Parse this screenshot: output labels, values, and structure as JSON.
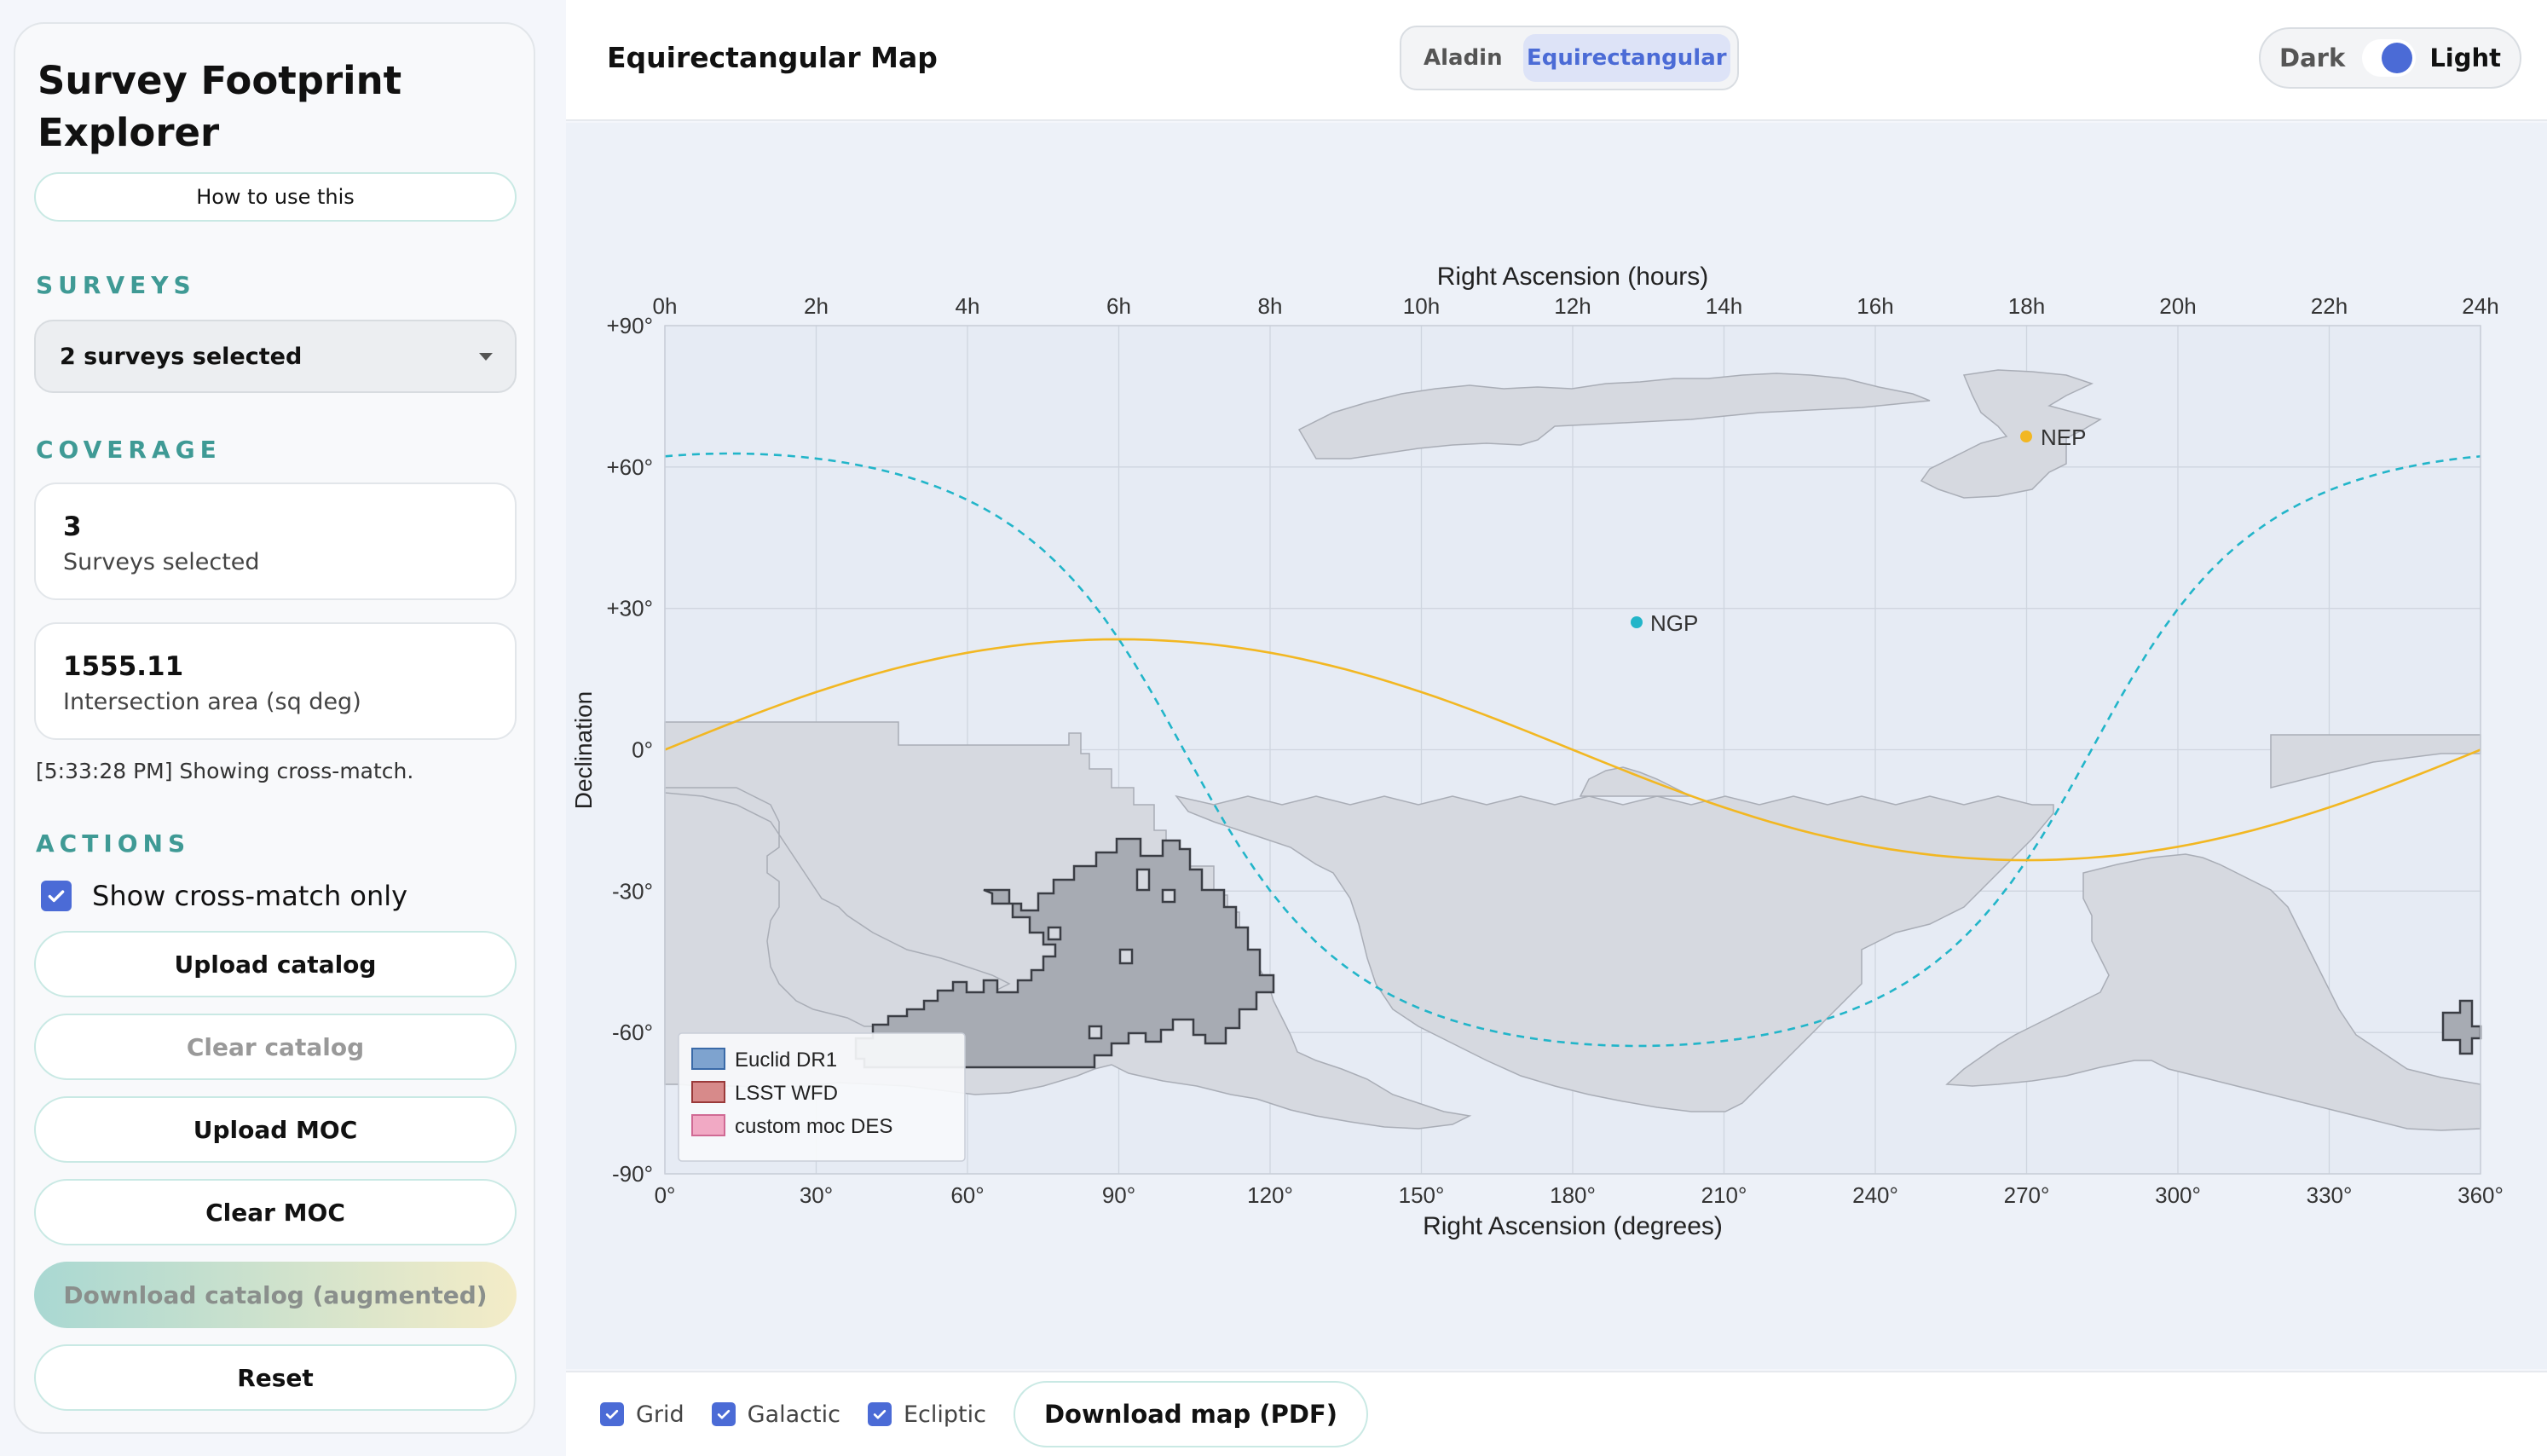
{
  "sidebar": {
    "title_line1": "Survey Footprint",
    "title_line2": "Explorer",
    "help_label": "How to use this",
    "surveys_section": "SURVEYS",
    "surveys_select": "2 surveys selected",
    "coverage_section": "COVERAGE",
    "stat1_value": "3",
    "stat1_label": "Surveys selected",
    "stat2_value": "1555.11",
    "stat2_label": "Intersection area (sq deg)",
    "status": "[5:33:28 PM] Showing cross-match.",
    "actions_section": "ACTIONS",
    "crossmatch_label": "Show cross-match only",
    "btn_upload_catalog": "Upload catalog",
    "btn_clear_catalog": "Clear catalog",
    "btn_upload_moc": "Upload MOC",
    "btn_clear_moc": "Clear MOC",
    "btn_download_catalog": "Download catalog (augmented)",
    "btn_reset": "Reset"
  },
  "header": {
    "title": "Equirectangular Map",
    "view_aladin": "Aladin",
    "view_equirect": "Equirectangular",
    "theme_dark": "Dark",
    "theme_light": "Light"
  },
  "map": {
    "top_axis_title": "Right Ascension (hours)",
    "bottom_axis_title": "Right Ascension (degrees)",
    "y_axis_title": "Declination",
    "hour_ticks": [
      "0h",
      "2h",
      "4h",
      "6h",
      "8h",
      "10h",
      "12h",
      "14h",
      "16h",
      "18h",
      "20h",
      "22h",
      "24h"
    ],
    "deg_ticks": [
      "0°",
      "30°",
      "60°",
      "90°",
      "120°",
      "150°",
      "180°",
      "210°",
      "240°",
      "270°",
      "300°",
      "330°",
      "360°"
    ],
    "dec_ticks": [
      "+90°",
      "+60°",
      "+30°",
      "0°",
      "-30°",
      "-60°",
      "-90°"
    ],
    "ngp_label": "NGP",
    "nep_label": "NEP",
    "legend": [
      {
        "label": "Euclid DR1",
        "fill": "#7ea3cf",
        "stroke": "#3a6aa8"
      },
      {
        "label": "LSST WFD",
        "fill": "#d78a8a",
        "stroke": "#9a3a3a"
      },
      {
        "label": "custom moc DES",
        "fill": "#f1a9c4",
        "stroke": "#d06a94"
      }
    ],
    "galactic_color": "#22b5c9",
    "ecliptic_color": "#f2b722",
    "footprint_color": "#d4d7de",
    "crossmatch_color": "#a4a8b0"
  },
  "footer": {
    "grid_label": "Grid",
    "galactic_label": "Galactic",
    "ecliptic_label": "Ecliptic",
    "download_map": "Download map (PDF)"
  }
}
